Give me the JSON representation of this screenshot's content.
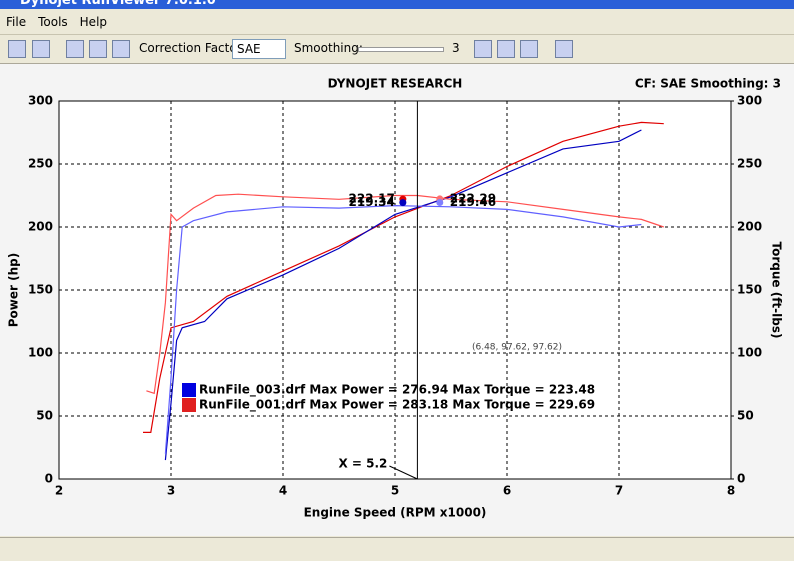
{
  "window": {
    "title": "Dynojet RunViewer 7.0.1.0"
  },
  "menu": [
    "File",
    "Tools",
    "Help"
  ],
  "toolbar": {
    "correction_label": "Correction Factor:",
    "correction_value": "SAE",
    "smoothing_label": "Smoothing:",
    "smoothing_value": 3
  },
  "chart_data": {
    "type": "line",
    "title": "DYNOJET RESEARCH",
    "subtitle": "CF: SAE  Smoothing: 3",
    "x_label": "Engine Speed (RPM x1000)",
    "y_label": "Power (hp)",
    "y2_label": "Torque (ft-lbs)",
    "xlim": [
      2,
      8
    ],
    "xticks": [
      2,
      3,
      4,
      5,
      6,
      7,
      8
    ],
    "ylim": [
      0,
      300
    ],
    "yticks": [
      0,
      50,
      100,
      150,
      200,
      250,
      300
    ],
    "y2lim": [
      0,
      300
    ],
    "y2ticks": [
      0,
      50,
      100,
      150,
      200,
      250,
      300
    ],
    "grid": true,
    "series": [
      {
        "color": "#e00000",
        "x": [
          2.75,
          2.82,
          2.9,
          3.0,
          3.2,
          3.5,
          4.0,
          4.5,
          5.0,
          5.5,
          6.0,
          6.5,
          7.0,
          7.2,
          7.4
        ],
        "values": [
          37,
          37,
          80,
          120,
          125,
          145,
          165,
          185,
          208,
          225,
          248,
          268,
          280,
          283,
          282
        ]
      },
      {
        "color": "#0000c0",
        "x": [
          2.95,
          3.0,
          3.05,
          3.1,
          3.3,
          3.5,
          4.0,
          4.5,
          5.0,
          5.5,
          6.0,
          6.5,
          7.0,
          7.2
        ],
        "values": [
          15,
          60,
          110,
          120,
          125,
          143,
          162,
          183,
          210,
          224,
          243,
          262,
          268,
          277
        ]
      },
      {
        "color": "#ff5050",
        "axis": "y2",
        "x": [
          2.78,
          2.85,
          2.9,
          2.95,
          3.0,
          3.05,
          3.2,
          3.4,
          3.6,
          4.0,
          4.5,
          5.0,
          5.2,
          5.5,
          6.0,
          6.5,
          7.0,
          7.2,
          7.4
        ],
        "values": [
          70,
          68,
          100,
          140,
          210,
          205,
          215,
          225,
          226,
          224,
          222,
          225,
          225,
          222,
          220,
          214,
          208,
          206,
          200
        ]
      },
      {
        "color": "#6060ff",
        "axis": "y2",
        "x": [
          2.95,
          3.0,
          3.05,
          3.1,
          3.2,
          3.5,
          4.0,
          4.5,
          5.0,
          5.5,
          6.0,
          6.5,
          7.0,
          7.2
        ],
        "values": [
          20,
          80,
          150,
          200,
          205,
          212,
          216,
          215,
          217,
          216,
          214,
          208,
          200,
          202
        ]
      }
    ],
    "readouts": [
      {
        "x": 5.07,
        "value": 222.17,
        "color": "#e00000",
        "side": "left"
      },
      {
        "x": 5.07,
        "value": 219.34,
        "color": "#0000c0",
        "side": "left"
      },
      {
        "x": 5.4,
        "value": 222.29,
        "color": "#ff7070",
        "side": "right"
      },
      {
        "x": 5.4,
        "value": 219.46,
        "color": "#8080ff",
        "side": "right"
      }
    ],
    "cursor": {
      "x": 5.2,
      "label": "X = 5.2"
    },
    "annotation": "(6.48, 97.62, 97.62)",
    "legend": [
      {
        "text": "RunFile_003.drf Max Power = 276.94 Max Torque = 223.48",
        "color": "#0000e0"
      },
      {
        "text": "RunFile_001.drf Max Power = 283.18 Max Torque = 229.69",
        "color": "#e02020"
      }
    ]
  }
}
